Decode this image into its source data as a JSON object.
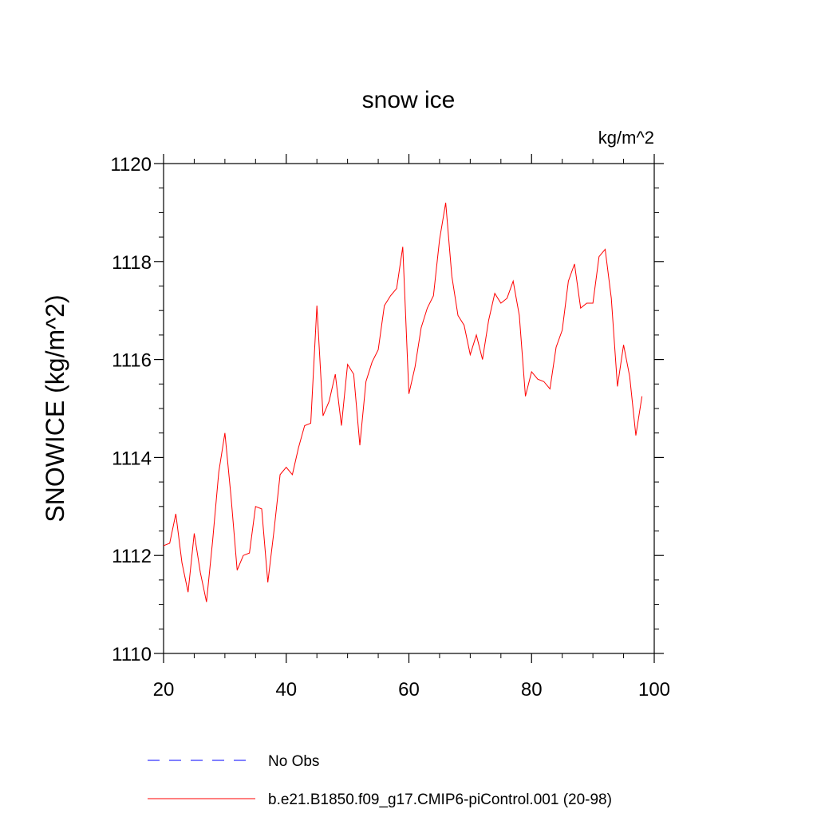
{
  "chart_data": {
    "type": "line",
    "title": "snow ice",
    "units": "kg/m^2",
    "ylabel": "SNOWICE  (kg/m^2)",
    "xlabel": "",
    "xlim": [
      20,
      100
    ],
    "ylim": [
      1110,
      1120
    ],
    "xticks": [
      20,
      40,
      60,
      80,
      100
    ],
    "yticks": [
      1110,
      1112,
      1114,
      1116,
      1118,
      1120
    ],
    "grid": false,
    "legend_position": "bottom",
    "series": [
      {
        "name": "No Obs",
        "color": "#0000ff",
        "dash": "dashed",
        "x": [],
        "y": []
      },
      {
        "name": "b.e21.B1850.f09_g17.CMIP6-piControl.001 (20-98)",
        "color": "#ff0000",
        "dash": "solid",
        "x": [
          20,
          21,
          22,
          23,
          24,
          25,
          26,
          27,
          28,
          29,
          30,
          31,
          32,
          33,
          34,
          35,
          36,
          37,
          38,
          39,
          40,
          41,
          42,
          43,
          44,
          45,
          46,
          47,
          48,
          49,
          50,
          51,
          52,
          53,
          54,
          55,
          56,
          57,
          58,
          59,
          60,
          61,
          62,
          63,
          64,
          65,
          66,
          67,
          68,
          69,
          70,
          71,
          72,
          73,
          74,
          75,
          76,
          77,
          78,
          79,
          80,
          81,
          82,
          83,
          84,
          85,
          86,
          87,
          88,
          89,
          90,
          91,
          92,
          93,
          94,
          95,
          96,
          97,
          98
        ],
        "y": [
          1112.2,
          1112.25,
          1112.85,
          1111.85,
          1111.25,
          1112.45,
          1111.65,
          1111.05,
          1112.3,
          1113.7,
          1114.5,
          1113.2,
          1111.7,
          1112.0,
          1112.05,
          1113.0,
          1112.95,
          1111.45,
          1112.5,
          1113.65,
          1113.8,
          1113.65,
          1114.2,
          1114.65,
          1114.7,
          1117.1,
          1114.85,
          1115.15,
          1115.7,
          1114.65,
          1115.9,
          1115.7,
          1114.25,
          1115.55,
          1115.95,
          1116.2,
          1117.1,
          1117.3,
          1117.45,
          1118.3,
          1115.3,
          1115.85,
          1116.65,
          1117.05,
          1117.3,
          1118.45,
          1119.2,
          1117.7,
          1116.9,
          1116.7,
          1116.1,
          1116.5,
          1116.0,
          1116.8,
          1117.35,
          1117.15,
          1117.25,
          1117.6,
          1116.9,
          1115.25,
          1115.75,
          1115.6,
          1115.55,
          1115.4,
          1116.25,
          1116.6,
          1117.6,
          1117.95,
          1117.05,
          1117.15,
          1117.15,
          1118.1,
          1118.25,
          1117.25,
          1115.45,
          1116.3,
          1115.65,
          1114.45,
          1115.25
        ]
      }
    ]
  }
}
